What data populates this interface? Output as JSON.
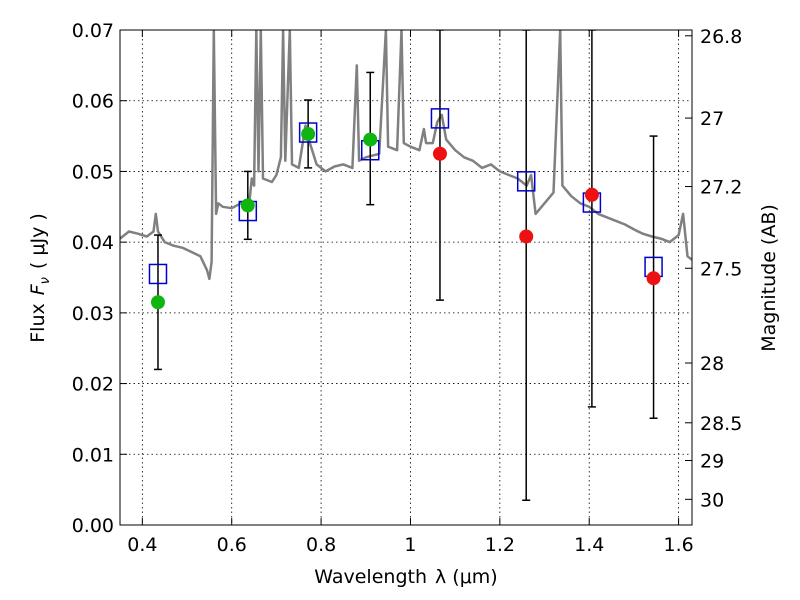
{
  "chart_data": {
    "type": "scatter",
    "xlabel_text": "Wavelength",
    "xlabel_math": "λ (μm)",
    "ylabel_text": "Flux",
    "ylabel_math": "F",
    "ylabel_sub": "ν",
    "ylabel_unit": "( μJy )",
    "y2label": "Magnitude (AB)",
    "xlim": [
      0.35,
      1.63
    ],
    "ylim": [
      0.0,
      0.07
    ],
    "x_ticks": [
      {
        "value": 0.4,
        "label": "0.4"
      },
      {
        "value": 0.6,
        "label": "0.6"
      },
      {
        "value": 0.8,
        "label": "0.8"
      },
      {
        "value": 1.0,
        "label": "1"
      },
      {
        "value": 1.2,
        "label": "1.2"
      },
      {
        "value": 1.4,
        "label": "1.4"
      },
      {
        "value": 1.6,
        "label": "1.6"
      }
    ],
    "y_ticks": [
      {
        "value": 0.0,
        "label": "0.00"
      },
      {
        "value": 0.01,
        "label": "0.01"
      },
      {
        "value": 0.02,
        "label": "0.02"
      },
      {
        "value": 0.03,
        "label": "0.03"
      },
      {
        "value": 0.04,
        "label": "0.04"
      },
      {
        "value": 0.05,
        "label": "0.05"
      },
      {
        "value": 0.06,
        "label": "0.06"
      },
      {
        "value": 0.07,
        "label": "0.07"
      }
    ],
    "y2_ticks": [
      {
        "value": 26.8,
        "label": "26.8"
      },
      {
        "value": 27.0,
        "label": "27"
      },
      {
        "value": 27.2,
        "label": "27.2"
      },
      {
        "value": 27.5,
        "label": "27.5"
      },
      {
        "value": 28.0,
        "label": "28"
      },
      {
        "value": 28.5,
        "label": "28.5"
      },
      {
        "value": 29.0,
        "label": "29"
      },
      {
        "value": 30.0,
        "label": "30"
      }
    ],
    "grid": true,
    "colors": {
      "sed": "#808080",
      "green_points": "#11b511",
      "red_points": "#ee1111",
      "model_squares": "#0000cc",
      "error_bars": "#000000"
    },
    "sed_model": [
      [
        0.35,
        0.0405
      ],
      [
        0.37,
        0.0415
      ],
      [
        0.39,
        0.0412
      ],
      [
        0.41,
        0.0408
      ],
      [
        0.425,
        0.0415
      ],
      [
        0.43,
        0.044
      ],
      [
        0.435,
        0.0415
      ],
      [
        0.45,
        0.04
      ],
      [
        0.47,
        0.0395
      ],
      [
        0.49,
        0.0392
      ],
      [
        0.51,
        0.0386
      ],
      [
        0.53,
        0.038
      ],
      [
        0.545,
        0.036
      ],
      [
        0.55,
        0.0348
      ],
      [
        0.555,
        0.0372
      ],
      [
        0.56,
        0.07
      ],
      [
        0.565,
        0.044
      ],
      [
        0.57,
        0.0455
      ],
      [
        0.58,
        0.045
      ],
      [
        0.6,
        0.0448
      ],
      [
        0.62,
        0.0455
      ],
      [
        0.64,
        0.046
      ],
      [
        0.645,
        0.049
      ],
      [
        0.65,
        0.048
      ],
      [
        0.655,
        0.07
      ],
      [
        0.66,
        0.05
      ],
      [
        0.665,
        0.07
      ],
      [
        0.67,
        0.049
      ],
      [
        0.69,
        0.0485
      ],
      [
        0.7,
        0.0495
      ],
      [
        0.71,
        0.052
      ],
      [
        0.715,
        0.07
      ],
      [
        0.72,
        0.0515
      ],
      [
        0.73,
        0.07
      ],
      [
        0.735,
        0.051
      ],
      [
        0.75,
        0.0505
      ],
      [
        0.765,
        0.0565
      ],
      [
        0.775,
        0.054
      ],
      [
        0.79,
        0.051
      ],
      [
        0.81,
        0.05
      ],
      [
        0.83,
        0.0507
      ],
      [
        0.85,
        0.051
      ],
      [
        0.87,
        0.0505
      ],
      [
        0.88,
        0.065
      ],
      [
        0.885,
        0.0515
      ],
      [
        0.9,
        0.052
      ],
      [
        0.93,
        0.0525
      ],
      [
        0.945,
        0.07
      ],
      [
        0.95,
        0.0535
      ],
      [
        0.97,
        0.053
      ],
      [
        0.98,
        0.07
      ],
      [
        0.985,
        0.054
      ],
      [
        1.0,
        0.0535
      ],
      [
        1.02,
        0.053
      ],
      [
        1.03,
        0.056
      ],
      [
        1.035,
        0.054
      ],
      [
        1.05,
        0.054
      ],
      [
        1.06,
        0.057
      ],
      [
        1.07,
        0.058
      ],
      [
        1.08,
        0.0545
      ],
      [
        1.1,
        0.053
      ],
      [
        1.12,
        0.052
      ],
      [
        1.14,
        0.0515
      ],
      [
        1.16,
        0.0505
      ],
      [
        1.18,
        0.051
      ],
      [
        1.2,
        0.05
      ],
      [
        1.22,
        0.0495
      ],
      [
        1.24,
        0.049
      ],
      [
        1.26,
        0.048
      ],
      [
        1.27,
        0.0495
      ],
      [
        1.28,
        0.044
      ],
      [
        1.3,
        0.0455
      ],
      [
        1.32,
        0.047
      ],
      [
        1.335,
        0.07
      ],
      [
        1.34,
        0.048
      ],
      [
        1.36,
        0.0465
      ],
      [
        1.38,
        0.0455
      ],
      [
        1.4,
        0.045
      ],
      [
        1.42,
        0.044
      ],
      [
        1.44,
        0.0435
      ],
      [
        1.46,
        0.043
      ],
      [
        1.48,
        0.0425
      ],
      [
        1.5,
        0.0418
      ],
      [
        1.52,
        0.0412
      ],
      [
        1.54,
        0.0408
      ],
      [
        1.56,
        0.0405
      ],
      [
        1.58,
        0.04
      ],
      [
        1.6,
        0.041
      ],
      [
        1.61,
        0.044
      ],
      [
        1.62,
        0.038
      ],
      [
        1.63,
        0.0375
      ]
    ],
    "observed_green": [
      {
        "x": 0.435,
        "y": 0.0315,
        "err_lo": 0.022,
        "err_hi": 0.041
      },
      {
        "x": 0.636,
        "y": 0.0452,
        "err_lo": 0.0404,
        "err_hi": 0.05
      },
      {
        "x": 0.771,
        "y": 0.0553,
        "err_lo": 0.0505,
        "err_hi": 0.0601
      },
      {
        "x": 0.91,
        "y": 0.0545,
        "err_lo": 0.0453,
        "err_hi": 0.064
      }
    ],
    "observed_red": [
      {
        "x": 1.066,
        "y": 0.0525,
        "err_lo": 0.0318,
        "err_hi": 0.07
      },
      {
        "x": 1.259,
        "y": 0.0408,
        "err_lo": 0.0035,
        "err_hi": 0.07
      },
      {
        "x": 1.406,
        "y": 0.0467,
        "err_lo": 0.0167,
        "err_hi": 0.07
      },
      {
        "x": 1.544,
        "y": 0.0349,
        "err_lo": 0.0151,
        "err_hi": 0.055
      }
    ],
    "model_photometry": [
      {
        "x": 0.435,
        "y": 0.0355
      },
      {
        "x": 0.636,
        "y": 0.0444
      },
      {
        "x": 0.771,
        "y": 0.0555
      },
      {
        "x": 0.91,
        "y": 0.053
      },
      {
        "x": 1.066,
        "y": 0.0575
      },
      {
        "x": 1.259,
        "y": 0.0486
      },
      {
        "x": 1.406,
        "y": 0.0456
      },
      {
        "x": 1.544,
        "y": 0.0365
      }
    ]
  }
}
